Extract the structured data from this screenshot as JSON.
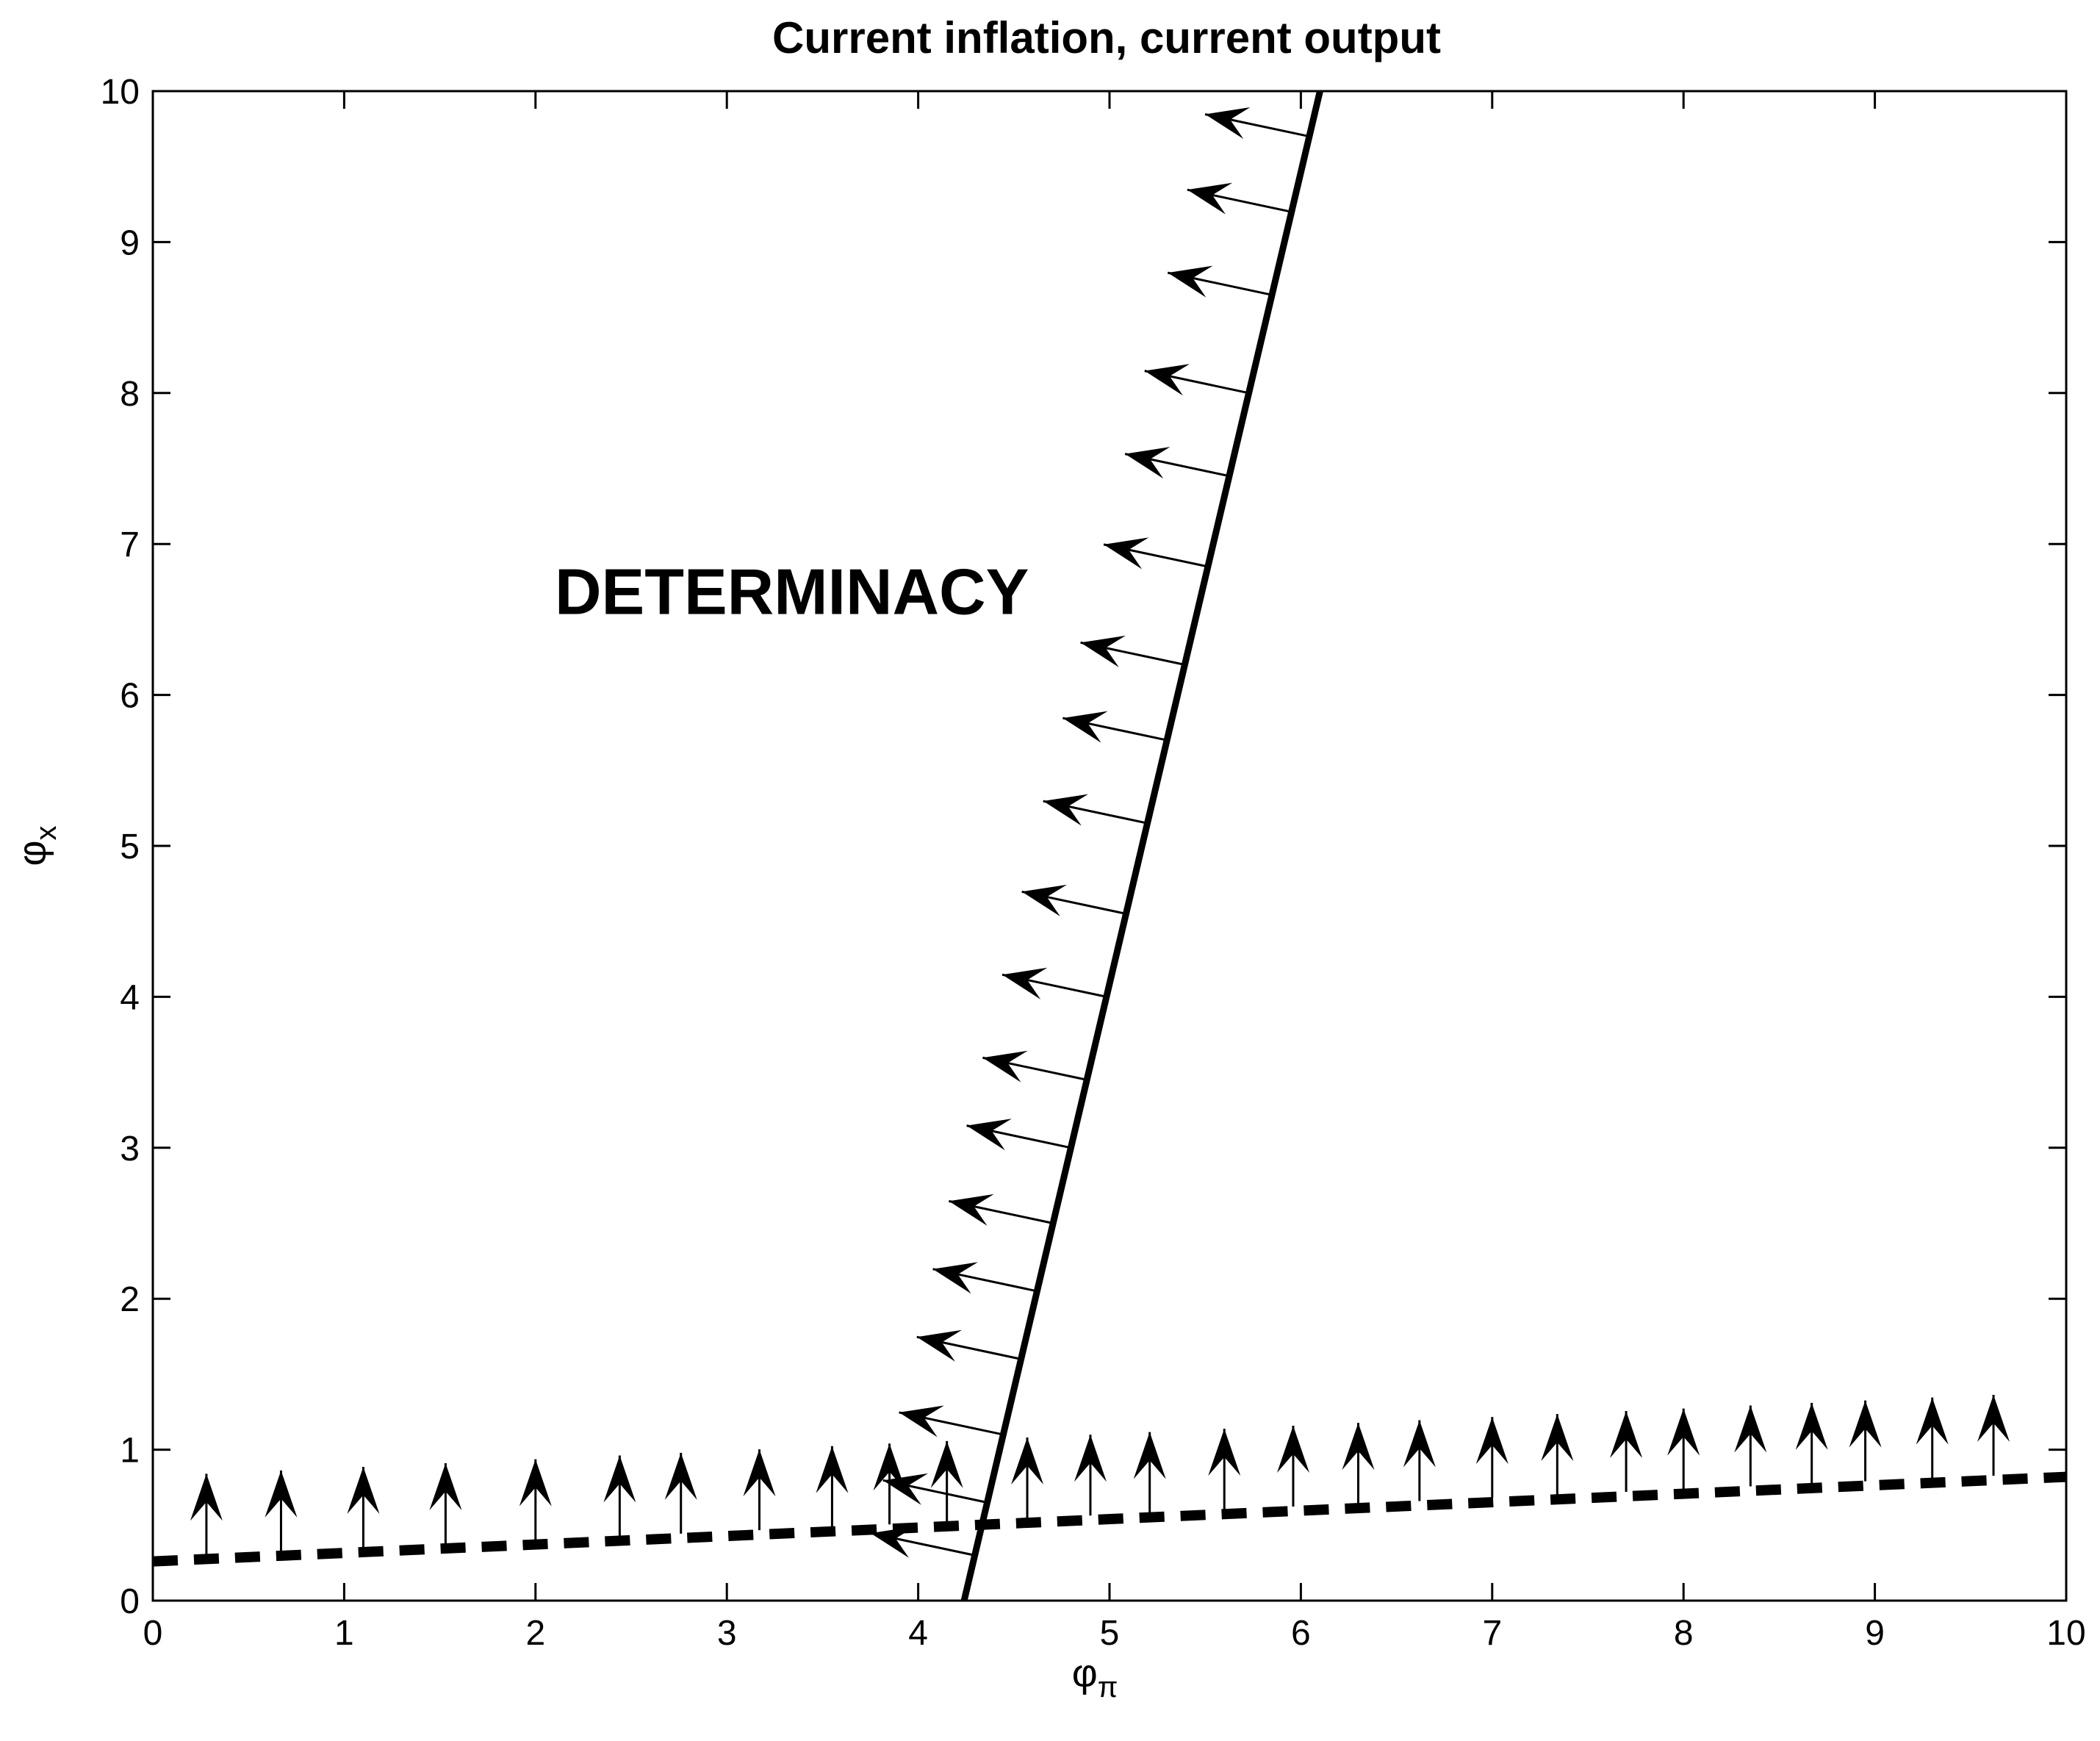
{
  "chart_data": {
    "type": "line",
    "title": "Current inflation, current output",
    "xlabel": {
      "symbol": "φ",
      "subscript": "π"
    },
    "ylabel": {
      "symbol": "φ",
      "subscript": "x"
    },
    "xlim": [
      0,
      10
    ],
    "ylim": [
      0,
      10
    ],
    "xticks": [
      "0",
      "1",
      "2",
      "3",
      "4",
      "5",
      "6",
      "7",
      "8",
      "9",
      "10"
    ],
    "yticks": [
      "0",
      "1",
      "2",
      "3",
      "4",
      "5",
      "6",
      "7",
      "8",
      "9",
      "10"
    ],
    "grid": false,
    "annotations": [
      {
        "text": "DETERMINACY",
        "x": 2.4,
        "y": 6.4
      }
    ],
    "series": [
      {
        "style": "solid",
        "x": [
          4.24,
          6.1
        ],
        "y": [
          0,
          10
        ],
        "arrows": {
          "direction": "left",
          "at_y": [
            0.3,
            0.65,
            1.1,
            1.6,
            2.05,
            2.5,
            3.0,
            3.45,
            4.0,
            4.55,
            5.15,
            5.7,
            6.2,
            6.85,
            7.45,
            8.0,
            8.65,
            9.2,
            9.7
          ]
        }
      },
      {
        "style": "dashed",
        "x": [
          0,
          10
        ],
        "y": [
          0.26,
          0.82
        ],
        "arrows": {
          "direction": "up",
          "at_x": [
            0.28,
            0.67,
            1.1,
            1.53,
            2.0,
            2.44,
            2.76,
            3.17,
            3.55,
            3.85,
            4.15,
            4.57,
            4.9,
            5.21,
            5.6,
            5.96,
            6.3,
            6.62,
            7.0,
            7.34,
            7.7,
            8.0,
            8.35,
            8.67,
            8.95,
            9.3,
            9.62
          ]
        }
      }
    ]
  }
}
